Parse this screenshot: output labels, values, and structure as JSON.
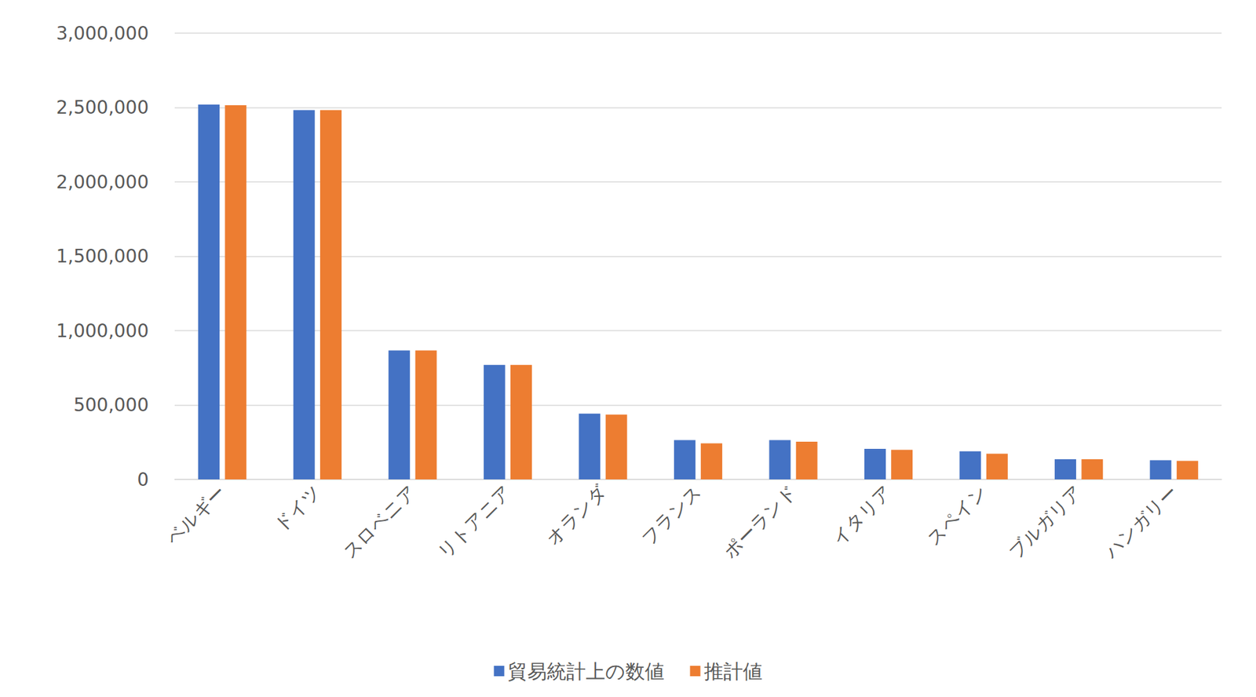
{
  "chart_data": {
    "type": "bar",
    "categories": [
      "ベルギー",
      "ドイツ",
      "スロベニア",
      "リトアニア",
      "オランダ",
      "フランス",
      "ポーランド",
      "イタリア",
      "スペイン",
      "ブルガリア",
      "ハンガリー"
    ],
    "series": [
      {
        "name": "貿易統計上の数値",
        "color": "#4472c4",
        "values": [
          2520000,
          2483000,
          867000,
          770000,
          442000,
          264000,
          264000,
          205000,
          189000,
          135000,
          129000
        ]
      },
      {
        "name": "推計値",
        "color": "#ed7d31",
        "values": [
          2515000,
          2483000,
          867000,
          770000,
          436000,
          242000,
          253000,
          199000,
          172000,
          135000,
          124000
        ]
      }
    ],
    "ylim": [
      0,
      3000000
    ],
    "yticks": [
      0,
      {
        "value": 500000,
        "label": "500,000"
      },
      {
        "value": 1000000,
        "label": "1,000,000"
      },
      {
        "value": 1500000,
        "label": "1,500,000"
      },
      {
        "value": 2000000,
        "label": "2,000,000"
      },
      {
        "value": 2500000,
        "label": "2,500,000"
      },
      {
        "value": 3000000,
        "label": "3,000,000"
      }
    ],
    "grid": true,
    "legend": "bottom"
  }
}
